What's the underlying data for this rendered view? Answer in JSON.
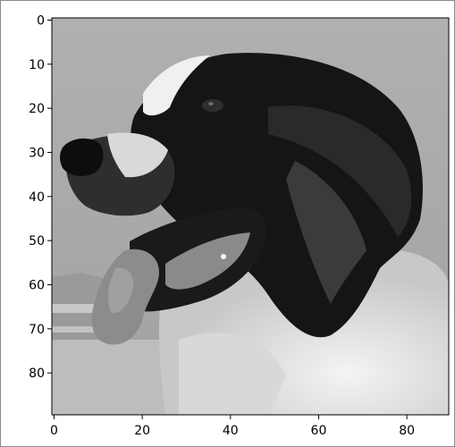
{
  "figure": {
    "kind": "image-plot",
    "colormap": "gray",
    "subject": "dog-head-photo",
    "image_shape": [
      90,
      90
    ],
    "x_ticks": [
      "0",
      "20",
      "40",
      "60",
      "80"
    ],
    "y_ticks": [
      "0",
      "10",
      "20",
      "30",
      "40",
      "50",
      "60",
      "70",
      "80"
    ]
  },
  "colors": {
    "background": "#ffffff",
    "axes": "#000000",
    "sky": "#a9a9a9",
    "fur_dark": "#121212",
    "fur_light": "#e6e6e6",
    "tongue": "#8c8c8c"
  }
}
